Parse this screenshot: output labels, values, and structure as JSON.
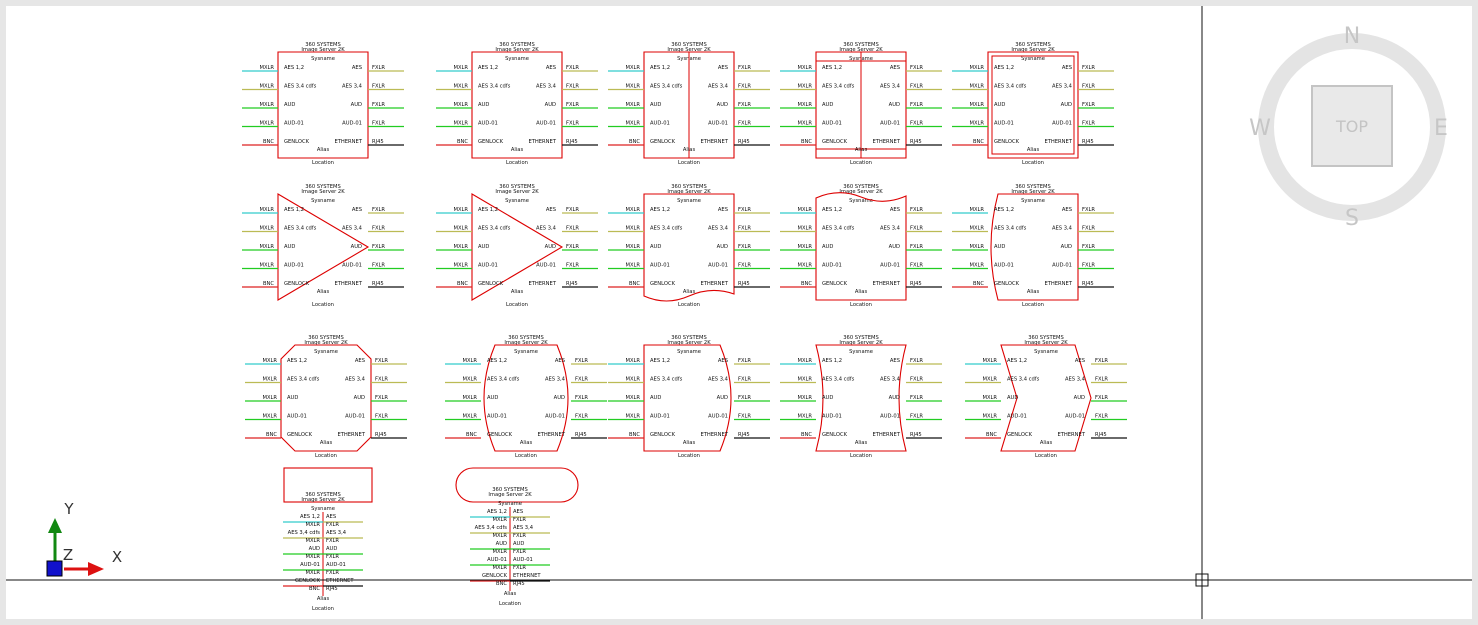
{
  "block_text": {
    "manufacturer": "360 SYSTEMS",
    "model": "Image Server 2K",
    "sysname": "Sysname",
    "alias": "Alias",
    "location": "Location",
    "in_ports": [
      "AES 1,2",
      "AES 3,4 cdfs",
      "AUD",
      "AUD-01",
      "GENLOCK"
    ],
    "out_ports": [
      "AES",
      "AES 3,4",
      "AUD",
      "AUD-01",
      "ETHERNET"
    ],
    "in_conns": [
      "MXLR",
      "MXLR",
      "MXLR",
      "MXLR",
      "BNC"
    ],
    "out_conns": [
      "FXLR",
      "FXLR",
      "FXLR",
      "FXLR",
      "RJ45"
    ]
  },
  "wire_colors": [
    "#33cccc",
    "#bbbb55",
    "#22cc22",
    "#22cc22",
    "#dd2222"
  ],
  "out_wire_colors": [
    "#bbbb55",
    "#bbbb55",
    "#22cc22",
    "#22cc22",
    "#111111"
  ],
  "shape_color": "#dd0000",
  "viewcube": {
    "north": "N",
    "south": "S",
    "east": "E",
    "west": "W",
    "top": "TOP"
  },
  "ucs": {
    "x_label": "X",
    "y_label": "Y",
    "z_label": "Z",
    "x_color": "#dd1111",
    "y_color": "#118811",
    "origin_color": "#1111cc"
  }
}
